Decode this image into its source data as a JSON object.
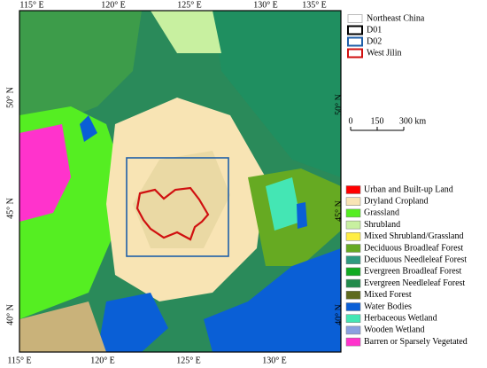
{
  "map": {
    "top_labels": [
      "115° E",
      "120° E",
      "125° E",
      "130° E",
      "135° E"
    ],
    "bottom_labels": [
      "115° E",
      "120° E",
      "125° E",
      "130° E"
    ],
    "left_labels": [
      "50° N",
      "45° N",
      "40° N"
    ],
    "right_labels": [
      "50° N",
      "45° N",
      "40° N"
    ]
  },
  "boundary_legend": [
    {
      "label": "Northeast China",
      "color": "#bbbbbb"
    },
    {
      "label": "D01",
      "color": "#000000"
    },
    {
      "label": "D02",
      "color": "#1f5fa8"
    },
    {
      "label": "West Jilin",
      "color": "#d01010"
    }
  ],
  "scale_bar": {
    "labels": [
      "0",
      "150",
      "300 km"
    ]
  },
  "land_cover_legend": [
    {
      "label": "Urban and Built-up Land",
      "color": "#ff0000"
    },
    {
      "label": "Dryland Cropland",
      "color": "#f8e4b4"
    },
    {
      "label": "Grassland",
      "color": "#55ee22"
    },
    {
      "label": "Shrubland",
      "color": "#c8f0a0"
    },
    {
      "label": "Mixed Shrubland/Grassland",
      "color": "#ffee44"
    },
    {
      "label": "Deciduous Broadleaf Forest",
      "color": "#66aa22"
    },
    {
      "label": "Deciduous Needleleaf Forest",
      "color": "#2e9a80"
    },
    {
      "label": "Evergreen Broadleaf Forest",
      "color": "#11aa22"
    },
    {
      "label": "Evergreen Needleleaf Forest",
      "color": "#228b4b"
    },
    {
      "label": "Mixed Forest",
      "color": "#5e6a1e"
    },
    {
      "label": "Water Bodies",
      "color": "#0a5fd6"
    },
    {
      "label": "Herbaceous Wetland",
      "color": "#44e6b4"
    },
    {
      "label": "Wooden Wetland",
      "color": "#8aa0e0"
    },
    {
      "label": "Barren or Sparsely Vegetated",
      "color": "#ff33cc"
    }
  ]
}
